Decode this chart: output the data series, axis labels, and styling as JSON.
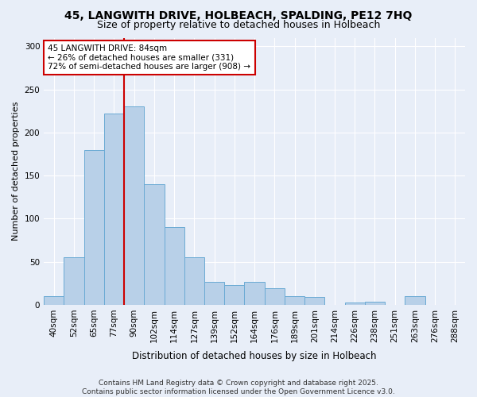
{
  "title": "45, LANGWITH DRIVE, HOLBEACH, SPALDING, PE12 7HQ",
  "subtitle": "Size of property relative to detached houses in Holbeach",
  "xlabel": "Distribution of detached houses by size in Holbeach",
  "ylabel": "Number of detached properties",
  "categories": [
    "40sqm",
    "52sqm",
    "65sqm",
    "77sqm",
    "90sqm",
    "102sqm",
    "114sqm",
    "127sqm",
    "139sqm",
    "152sqm",
    "164sqm",
    "176sqm",
    "189sqm",
    "201sqm",
    "214sqm",
    "226sqm",
    "238sqm",
    "251sqm",
    "263sqm",
    "276sqm",
    "288sqm"
  ],
  "values": [
    10,
    55,
    180,
    222,
    230,
    140,
    90,
    55,
    27,
    23,
    27,
    19,
    10,
    9,
    0,
    3,
    4,
    0,
    10,
    0,
    0
  ],
  "bar_color": "#b8d0e8",
  "bar_edge_color": "#6aaad4",
  "vline_color": "#cc0000",
  "vline_x_index": 3.5,
  "annotation_text": "45 LANGWITH DRIVE: 84sqm\n← 26% of detached houses are smaller (331)\n72% of semi-detached houses are larger (908) →",
  "annotation_box_color": "white",
  "annotation_box_edge": "#cc0000",
  "footer": "Contains HM Land Registry data © Crown copyright and database right 2025.\nContains public sector information licensed under the Open Government Licence v3.0.",
  "ylim": [
    0,
    310
  ],
  "background_color": "#e8eef8",
  "title_fontsize": 10,
  "subtitle_fontsize": 9,
  "ylabel_fontsize": 8,
  "tick_fontsize": 7.5,
  "footer_fontsize": 6.5,
  "annotation_fontsize": 7.5
}
